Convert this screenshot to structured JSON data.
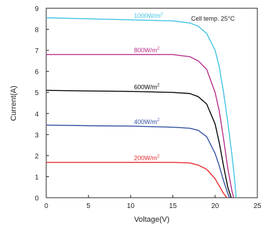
{
  "chart_data": {
    "type": "line",
    "title": "",
    "xlabel": "Voltage(V)",
    "ylabel": "Current(A)",
    "xlim": [
      0,
      25
    ],
    "ylim": [
      0,
      9
    ],
    "xticks": [
      "0",
      "5",
      "10",
      "15",
      "20",
      "25"
    ],
    "yticks": [
      "0",
      "1",
      "2",
      "3",
      "4",
      "5",
      "6",
      "7",
      "8",
      "9"
    ],
    "grid": false,
    "annotation": "Cell temp. 25°C",
    "series": [
      {
        "name": "1000W/m",
        "name_sup": "2",
        "color": "#3fc3e3",
        "x": [
          0,
          5,
          10,
          15,
          17,
          18,
          19,
          20,
          20.5,
          21,
          21.5,
          22,
          22.3,
          22.5
        ],
        "y": [
          8.55,
          8.5,
          8.45,
          8.4,
          8.3,
          8.15,
          7.8,
          7.0,
          6.2,
          5.0,
          3.6,
          2.0,
          0.9,
          0
        ]
      },
      {
        "name": "800W/m",
        "name_sup": "2",
        "color": "#b62a8a",
        "x": [
          0,
          5,
          10,
          15,
          17,
          18,
          19,
          20,
          20.5,
          21,
          21.5,
          22,
          22.2
        ],
        "y": [
          6.8,
          6.8,
          6.8,
          6.8,
          6.7,
          6.5,
          6.1,
          5.0,
          4.1,
          2.8,
          1.4,
          0.3,
          0
        ]
      },
      {
        "name": "600W/m",
        "name_sup": "2",
        "color": "#000000",
        "x": [
          0,
          5,
          10,
          15,
          17,
          18,
          19,
          20,
          20.5,
          21,
          21.5,
          21.9
        ],
        "y": [
          5.1,
          5.07,
          5.05,
          5.0,
          4.95,
          4.8,
          4.45,
          3.5,
          2.6,
          1.5,
          0.5,
          0
        ]
      },
      {
        "name": "400W/m",
        "name_sup": "2",
        "color": "#2f4f9f",
        "x": [
          0,
          5,
          10,
          15,
          17,
          18,
          19,
          20,
          20.5,
          21,
          21.5,
          21.7
        ],
        "y": [
          3.45,
          3.42,
          3.4,
          3.35,
          3.3,
          3.2,
          2.9,
          2.1,
          1.5,
          0.8,
          0.2,
          0
        ]
      },
      {
        "name": "200W/m",
        "name_sup": "2",
        "color": "#e5282d",
        "x": [
          0,
          5,
          10,
          15,
          17,
          18,
          19,
          20,
          20.5,
          21,
          21.4
        ],
        "y": [
          1.68,
          1.68,
          1.68,
          1.68,
          1.65,
          1.55,
          1.35,
          0.9,
          0.55,
          0.2,
          0
        ]
      }
    ]
  }
}
